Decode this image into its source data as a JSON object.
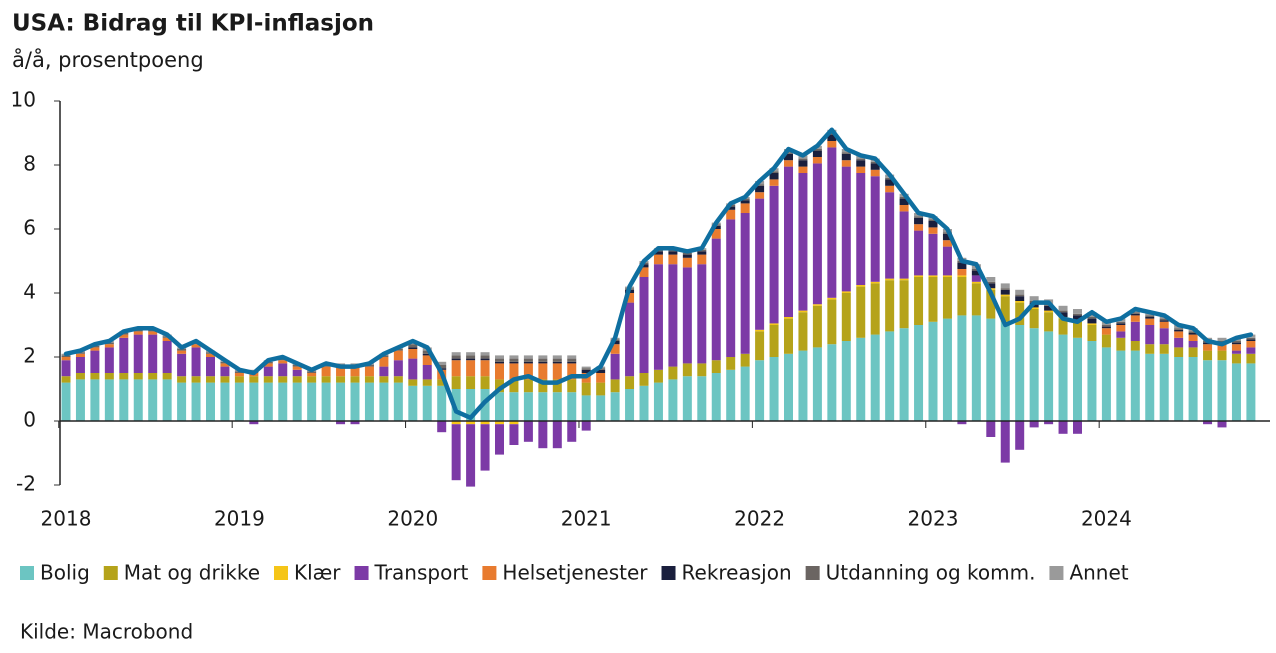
{
  "chart_data": {
    "type": "stacked_bar_line",
    "title": "USA: Bidrag til KPI-inflasjon",
    "subtitle": "å/å, prosentpoeng",
    "source": "Kilde: Macrobond",
    "categories": [
      "2018",
      null,
      null,
      null,
      null,
      null,
      null,
      null,
      null,
      null,
      null,
      null,
      "2019",
      null,
      null,
      null,
      null,
      null,
      null,
      null,
      null,
      null,
      null,
      null,
      "2020",
      null,
      null,
      null,
      null,
      null,
      null,
      null,
      null,
      null,
      null,
      null,
      "2021",
      null,
      null,
      null,
      null,
      null,
      null,
      null,
      null,
      null,
      null,
      null,
      "2022",
      null,
      null,
      null,
      null,
      null,
      null,
      null,
      null,
      null,
      null,
      null,
      "2023",
      null,
      null,
      null,
      null,
      null,
      null,
      null,
      null,
      null,
      null,
      null,
      "2024",
      null,
      null,
      null,
      null,
      null,
      null,
      null,
      null,
      null,
      null
    ],
    "ylim": [
      -2,
      10
    ],
    "yticks": [
      -2,
      0,
      2,
      4,
      6,
      8,
      10
    ],
    "series": [
      {
        "name": "Bolig",
        "color": "#6cc5c2",
        "values": [
          1.2,
          1.3,
          1.3,
          1.3,
          1.3,
          1.3,
          1.3,
          1.3,
          1.2,
          1.2,
          1.2,
          1.2,
          1.2,
          1.2,
          1.2,
          1.2,
          1.2,
          1.2,
          1.2,
          1.2,
          1.2,
          1.2,
          1.2,
          1.2,
          1.1,
          1.1,
          1.1,
          1.0,
          1.0,
          1.0,
          0.9,
          0.9,
          0.9,
          0.9,
          0.9,
          0.9,
          0.8,
          0.8,
          0.9,
          1.0,
          1.1,
          1.2,
          1.3,
          1.4,
          1.4,
          1.5,
          1.6,
          1.7,
          1.9,
          2.0,
          2.1,
          2.2,
          2.3,
          2.4,
          2.5,
          2.6,
          2.7,
          2.8,
          2.9,
          3.0,
          3.1,
          3.2,
          3.3,
          3.3,
          3.2,
          3.1,
          3.0,
          2.9,
          2.8,
          2.7,
          2.6,
          2.5,
          2.3,
          2.2,
          2.2,
          2.1,
          2.1,
          2.0,
          2.0,
          1.9,
          1.9,
          1.8,
          1.8
        ]
      },
      {
        "name": "Mat og drikke",
        "color": "#b5a31a",
        "values": [
          0.2,
          0.2,
          0.2,
          0.2,
          0.2,
          0.2,
          0.2,
          0.2,
          0.2,
          0.2,
          0.2,
          0.2,
          0.2,
          0.2,
          0.2,
          0.2,
          0.2,
          0.2,
          0.2,
          0.2,
          0.2,
          0.2,
          0.2,
          0.2,
          0.2,
          0.2,
          0.2,
          0.4,
          0.4,
          0.4,
          0.4,
          0.4,
          0.4,
          0.4,
          0.4,
          0.4,
          0.4,
          0.4,
          0.4,
          0.4,
          0.4,
          0.4,
          0.4,
          0.4,
          0.4,
          0.4,
          0.4,
          0.4,
          0.9,
          1.0,
          1.1,
          1.2,
          1.3,
          1.4,
          1.5,
          1.6,
          1.6,
          1.6,
          1.5,
          1.5,
          1.4,
          1.3,
          1.2,
          1.0,
          0.9,
          0.8,
          0.7,
          0.6,
          0.6,
          0.5,
          0.5,
          0.5,
          0.4,
          0.4,
          0.3,
          0.3,
          0.3,
          0.3,
          0.3,
          0.3,
          0.3,
          0.3,
          0.3
        ]
      },
      {
        "name": "Klær",
        "color": "#f5c518",
        "values": [
          0,
          0,
          0,
          0,
          0,
          0,
          0,
          0,
          0,
          0,
          0,
          0,
          0,
          0,
          0,
          0,
          0,
          0,
          0,
          0,
          0,
          0,
          0,
          0,
          0,
          0,
          0,
          -0.1,
          -0.1,
          -0.1,
          -0.1,
          -0.1,
          0,
          0,
          0,
          0,
          0,
          0,
          0,
          0,
          0,
          0,
          0,
          0,
          0,
          0,
          0,
          0,
          0.05,
          0.05,
          0.05,
          0.05,
          0.05,
          0.05,
          0.05,
          0.05,
          0.05,
          0.05,
          0.05,
          0.05,
          0.05,
          0.05,
          0.05,
          0.05,
          0.05,
          0.05,
          0.05,
          0.05,
          0.05,
          0.05,
          0.05,
          0.05,
          0,
          0,
          0,
          0,
          0,
          0,
          0,
          0,
          0,
          0,
          0
        ]
      },
      {
        "name": "Transport",
        "color": "#7c3aa6",
        "values": [
          0.5,
          0.5,
          0.7,
          0.8,
          1.1,
          1.2,
          1.2,
          1.0,
          0.7,
          0.9,
          0.6,
          0.3,
          0.0,
          -0.1,
          0.3,
          0.4,
          0.2,
          0.0,
          0.0,
          -0.1,
          -0.1,
          0.0,
          0.3,
          0.5,
          0.65,
          0.45,
          -0.35,
          -1.75,
          -1.95,
          -1.45,
          -0.95,
          -0.65,
          -0.65,
          -0.85,
          -0.85,
          -0.65,
          -0.3,
          0.0,
          0.8,
          2.3,
          3.0,
          3.3,
          3.2,
          3.0,
          3.1,
          3.8,
          4.3,
          4.4,
          4.1,
          4.3,
          4.7,
          4.3,
          4.4,
          4.7,
          3.9,
          3.5,
          3.3,
          2.7,
          2.1,
          1.4,
          1.3,
          0.9,
          -0.1,
          0.2,
          -0.5,
          -1.3,
          -0.9,
          -0.2,
          -0.1,
          -0.4,
          -0.4,
          0.0,
          0.0,
          0.2,
          0.6,
          0.6,
          0.5,
          0.3,
          0.2,
          -0.1,
          -0.2,
          0.1,
          0.2
        ]
      },
      {
        "name": "Helsetjenester",
        "color": "#e87b2f",
        "values": [
          0.1,
          0.1,
          0.1,
          0.1,
          0.1,
          0.1,
          0.1,
          0.1,
          0.1,
          0.1,
          0.1,
          0.1,
          0.1,
          0.1,
          0.1,
          0.1,
          0.1,
          0.1,
          0.3,
          0.3,
          0.3,
          0.3,
          0.3,
          0.3,
          0.3,
          0.3,
          0.3,
          0.5,
          0.5,
          0.5,
          0.5,
          0.5,
          0.5,
          0.5,
          0.5,
          0.5,
          0.3,
          0.3,
          0.3,
          0.3,
          0.3,
          0.3,
          0.3,
          0.3,
          0.3,
          0.3,
          0.3,
          0.3,
          0.2,
          0.2,
          0.2,
          0.2,
          0.2,
          0.2,
          0.2,
          0.2,
          0.2,
          0.2,
          0.2,
          0.2,
          0.2,
          0.2,
          0.2,
          0,
          0,
          0,
          0,
          0,
          0,
          0,
          0,
          0,
          0.2,
          0.2,
          0.2,
          0.2,
          0.2,
          0.2,
          0.2,
          0.2,
          0.2,
          0.2,
          0.2
        ]
      },
      {
        "name": "Rekreasjon",
        "color": "#1a1f3d",
        "values": [
          0,
          0,
          0,
          0,
          0,
          0,
          0,
          0,
          0,
          0,
          0,
          0,
          0,
          0,
          0,
          0,
          0,
          0,
          0,
          0,
          0,
          0,
          0,
          0,
          0.05,
          0.05,
          0.05,
          0.05,
          0.05,
          0.05,
          0.05,
          0.05,
          0.05,
          0.05,
          0.05,
          0.05,
          0.1,
          0.1,
          0.1,
          0.1,
          0.1,
          0.1,
          0.1,
          0.1,
          0.1,
          0.1,
          0.1,
          0.1,
          0.2,
          0.2,
          0.2,
          0.2,
          0.2,
          0.2,
          0.2,
          0.2,
          0.2,
          0.2,
          0.2,
          0.2,
          0.2,
          0.2,
          0.2,
          0.15,
          0.15,
          0.15,
          0.15,
          0.15,
          0.15,
          0.15,
          0.15,
          0.15,
          0.05,
          0.05,
          0.05,
          0.05,
          0.05,
          0.05,
          0.05,
          0.05,
          0.05,
          0.05,
          0.05
        ]
      },
      {
        "name": "Utdanning og komm.",
        "color": "#6b6562",
        "values": [
          0.05,
          0.05,
          0.05,
          0.05,
          0.05,
          0.05,
          0.05,
          0.05,
          0.05,
          0.05,
          0.05,
          0.05,
          0.05,
          0.05,
          0.05,
          0.05,
          0.05,
          0.05,
          0.05,
          0.05,
          0.05,
          0.05,
          0.05,
          0.05,
          0.1,
          0.1,
          0.1,
          0.1,
          0.1,
          0.1,
          0.1,
          0.1,
          0.1,
          0.1,
          0.1,
          0.1,
          0.05,
          0.05,
          0.05,
          0.05,
          0.05,
          0.05,
          0.05,
          0.05,
          0.05,
          0.05,
          0.05,
          0.05,
          0.05,
          0.05,
          0.05,
          0.05,
          0.05,
          0.05,
          0.05,
          0.05,
          0.05,
          0.05,
          0.05,
          0.05,
          0.05,
          0.05,
          0.05,
          0.05,
          0.05,
          0.05,
          0.05,
          0.05,
          0.05,
          0.05,
          0.05,
          0.05,
          0.05,
          0.05,
          0.05,
          0.05,
          0.05,
          0.05,
          0.05,
          0.05,
          0.05,
          0.05,
          0.05
        ]
      },
      {
        "name": "Annet",
        "color": "#9a9a9a",
        "values": [
          0.05,
          0.05,
          0.05,
          0.05,
          0.05,
          0.05,
          0.05,
          0.05,
          0.05,
          0.05,
          0.05,
          0.05,
          0.05,
          0.05,
          0.05,
          0.05,
          0.05,
          0.05,
          0.05,
          0.05,
          0.05,
          0.05,
          0.05,
          0.05,
          0.1,
          0.1,
          0.1,
          0.1,
          0.1,
          0.1,
          0.1,
          0.1,
          0.1,
          0.1,
          0.1,
          0.1,
          0.05,
          0.05,
          0.05,
          0.05,
          0.05,
          0.05,
          0.05,
          0.05,
          0.05,
          0.05,
          0.05,
          0.05,
          0.1,
          0.1,
          0.1,
          0.1,
          0.1,
          0.1,
          0.1,
          0.1,
          0.1,
          0.1,
          0.1,
          0.1,
          0.1,
          0.1,
          0.1,
          0.15,
          0.15,
          0.15,
          0.15,
          0.15,
          0.15,
          0.15,
          0.15,
          0.15,
          0.1,
          0.1,
          0.1,
          0.1,
          0.1,
          0.1,
          0.1,
          0.1,
          0.1,
          0.1,
          0.1
        ]
      }
    ],
    "line": {
      "color": "#0f6fa0",
      "values": [
        2.1,
        2.2,
        2.4,
        2.5,
        2.8,
        2.9,
        2.9,
        2.7,
        2.3,
        2.5,
        2.2,
        1.9,
        1.6,
        1.5,
        1.9,
        2.0,
        1.8,
        1.6,
        1.8,
        1.7,
        1.7,
        1.8,
        2.1,
        2.3,
        2.5,
        2.3,
        1.5,
        0.3,
        0.1,
        0.6,
        1.0,
        1.3,
        1.4,
        1.2,
        1.2,
        1.4,
        1.4,
        1.7,
        2.6,
        4.2,
        5.0,
        5.4,
        5.4,
        5.3,
        5.4,
        6.2,
        6.8,
        7.0,
        7.5,
        7.9,
        8.5,
        8.3,
        8.6,
        9.1,
        8.5,
        8.3,
        8.2,
        7.7,
        7.1,
        6.5,
        6.4,
        6.0,
        5.0,
        4.9,
        4.0,
        3.0,
        3.2,
        3.7,
        3.7,
        3.2,
        3.1,
        3.4,
        3.1,
        3.2,
        3.5,
        3.4,
        3.3,
        3.0,
        2.9,
        2.5,
        2.4,
        2.6,
        2.7
      ]
    }
  }
}
